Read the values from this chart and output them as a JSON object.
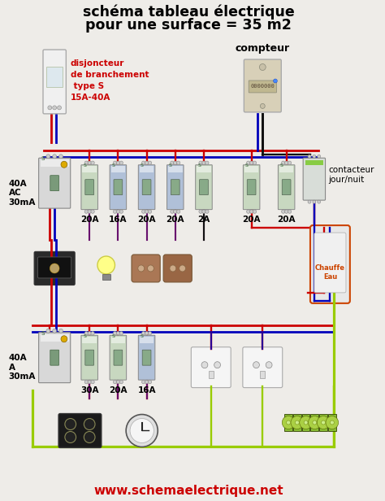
{
  "title_line1": "schéma tableau électrique",
  "title_line2": "pour une surface = 35 m2",
  "title_fontsize": 12.5,
  "bg_color": "#eeece8",
  "website": "www.schemaelectrique.net",
  "website_color": "#cc0000",
  "website_fontsize": 11,
  "label_disjoncteur_color": "#cc0000",
  "label_compteur": "compteur",
  "label_contacteur": "contacteur\njour/nuit",
  "label_40A_AC": "40A\nAC\n30mA",
  "label_40A_A": "40A\nA\n30mA",
  "breakers_top": [
    "20A",
    "16A",
    "20A",
    "20A",
    "2A",
    "20A",
    "20A"
  ],
  "breakers_bot": [
    "30A",
    "20A",
    "16A"
  ],
  "wire_red": "#cc0000",
  "wire_blue": "#0000bb",
  "wire_black": "#111111",
  "wire_green": "#00aa00",
  "wire_yellow_green": "#99cc00",
  "device_bg": "#e0ddd5",
  "breaker_green": "#c8d8c0",
  "breaker_blue": "#b0c0d8"
}
